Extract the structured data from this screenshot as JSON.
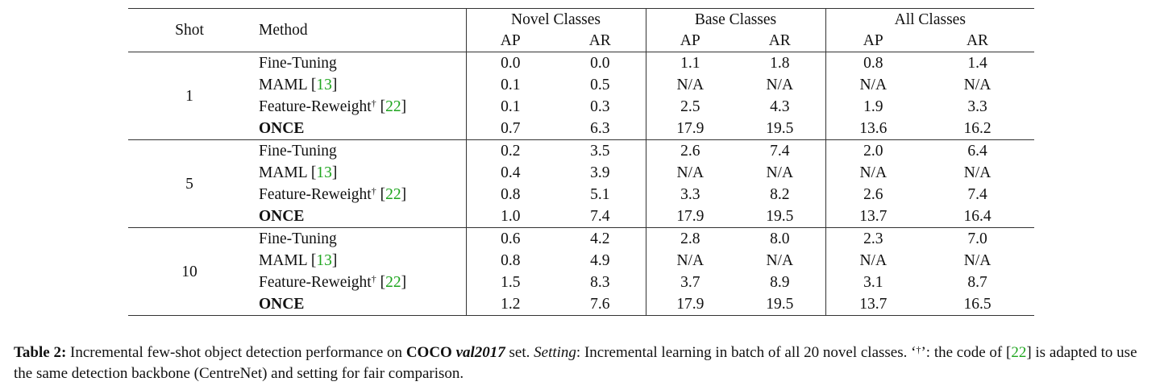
{
  "table": {
    "header": {
      "shot": "Shot",
      "method": "Method",
      "groups": [
        {
          "name": "Novel Classes",
          "cols": [
            "AP",
            "AR"
          ]
        },
        {
          "name": "Base Classes",
          "cols": [
            "AP",
            "AR"
          ]
        },
        {
          "name": "All Classes",
          "cols": [
            "AP",
            "AR"
          ]
        }
      ]
    },
    "blocks": [
      {
        "shot": "1",
        "rows": [
          {
            "method": "Fine-Tuning",
            "ref": "",
            "dagger": false,
            "bold_method": false,
            "values": [
              "0.0",
              "0.0",
              "1.1",
              "1.8",
              "0.8",
              "1.4"
            ],
            "bold": [
              false,
              false,
              false,
              false,
              false,
              false
            ]
          },
          {
            "method": "MAML",
            "ref": "13",
            "dagger": false,
            "bold_method": false,
            "values": [
              "0.1",
              "0.5",
              "N/A",
              "N/A",
              "N/A",
              "N/A"
            ],
            "bold": [
              false,
              false,
              false,
              false,
              false,
              false
            ]
          },
          {
            "method": "Feature-Reweight",
            "ref": "22",
            "dagger": true,
            "bold_method": false,
            "values": [
              "0.1",
              "0.3",
              "2.5",
              "4.3",
              "1.9",
              "3.3"
            ],
            "bold": [
              false,
              false,
              false,
              false,
              false,
              false
            ]
          },
          {
            "method": "ONCE",
            "ref": "",
            "dagger": false,
            "bold_method": true,
            "values": [
              "0.7",
              "6.3",
              "17.9",
              "19.5",
              "13.6",
              "16.2"
            ],
            "bold": [
              true,
              true,
              true,
              true,
              true,
              true
            ]
          }
        ]
      },
      {
        "shot": "5",
        "rows": [
          {
            "method": "Fine-Tuning",
            "ref": "",
            "dagger": false,
            "bold_method": false,
            "values": [
              "0.2",
              "3.5",
              "2.6",
              "7.4",
              "2.0",
              "6.4"
            ],
            "bold": [
              false,
              false,
              false,
              false,
              false,
              false
            ]
          },
          {
            "method": "MAML",
            "ref": "13",
            "dagger": false,
            "bold_method": false,
            "values": [
              "0.4",
              "3.9",
              "N/A",
              "N/A",
              "N/A",
              "N/A"
            ],
            "bold": [
              false,
              false,
              false,
              false,
              false,
              false
            ]
          },
          {
            "method": "Feature-Reweight",
            "ref": "22",
            "dagger": true,
            "bold_method": false,
            "values": [
              "0.8",
              "5.1",
              "3.3",
              "8.2",
              "2.6",
              "7.4"
            ],
            "bold": [
              false,
              false,
              false,
              false,
              false,
              false
            ]
          },
          {
            "method": "ONCE",
            "ref": "",
            "dagger": false,
            "bold_method": true,
            "values": [
              "1.0",
              "7.4",
              "17.9",
              "19.5",
              "13.7",
              "16.4"
            ],
            "bold": [
              true,
              true,
              true,
              true,
              true,
              true
            ]
          }
        ]
      },
      {
        "shot": "10",
        "rows": [
          {
            "method": "Fine-Tuning",
            "ref": "",
            "dagger": false,
            "bold_method": false,
            "values": [
              "0.6",
              "4.2",
              "2.8",
              "8.0",
              "2.3",
              "7.0"
            ],
            "bold": [
              false,
              false,
              false,
              false,
              false,
              false
            ]
          },
          {
            "method": "MAML",
            "ref": "13",
            "dagger": false,
            "bold_method": false,
            "values": [
              "0.8",
              "4.9",
              "N/A",
              "N/A",
              "N/A",
              "N/A"
            ],
            "bold": [
              false,
              false,
              false,
              false,
              false,
              false
            ]
          },
          {
            "method": "Feature-Reweight",
            "ref": "22",
            "dagger": true,
            "bold_method": false,
            "values": [
              "1.5",
              "8.3",
              "3.7",
              "8.9",
              "3.1",
              "8.7"
            ],
            "bold": [
              true,
              true,
              false,
              false,
              false,
              false
            ]
          },
          {
            "method": "ONCE",
            "ref": "",
            "dagger": false,
            "bold_method": true,
            "values": [
              "1.2",
              "7.6",
              "17.9",
              "19.5",
              "13.7",
              "16.5"
            ],
            "bold": [
              false,
              false,
              true,
              true,
              true,
              true
            ]
          }
        ]
      }
    ]
  },
  "caption": {
    "label": "Table 2:",
    "t1": " Incremental few-shot object detection performance on ",
    "coco": "COCO",
    "space": " ",
    "val": "val2017",
    "t2": " set. ",
    "setting": "Setting",
    "t3": ": Incremental learning in batch of all 20 novel classes. ‘",
    "dagger": "†",
    "t4": "’: the code of [",
    "ref": "22",
    "t5": "] is adapted to use the same detection backbone (CentreNet) and setting for fair comparison."
  },
  "colors": {
    "ref_link": "#1fa51f",
    "rule": "#333333",
    "text": "#111111"
  }
}
